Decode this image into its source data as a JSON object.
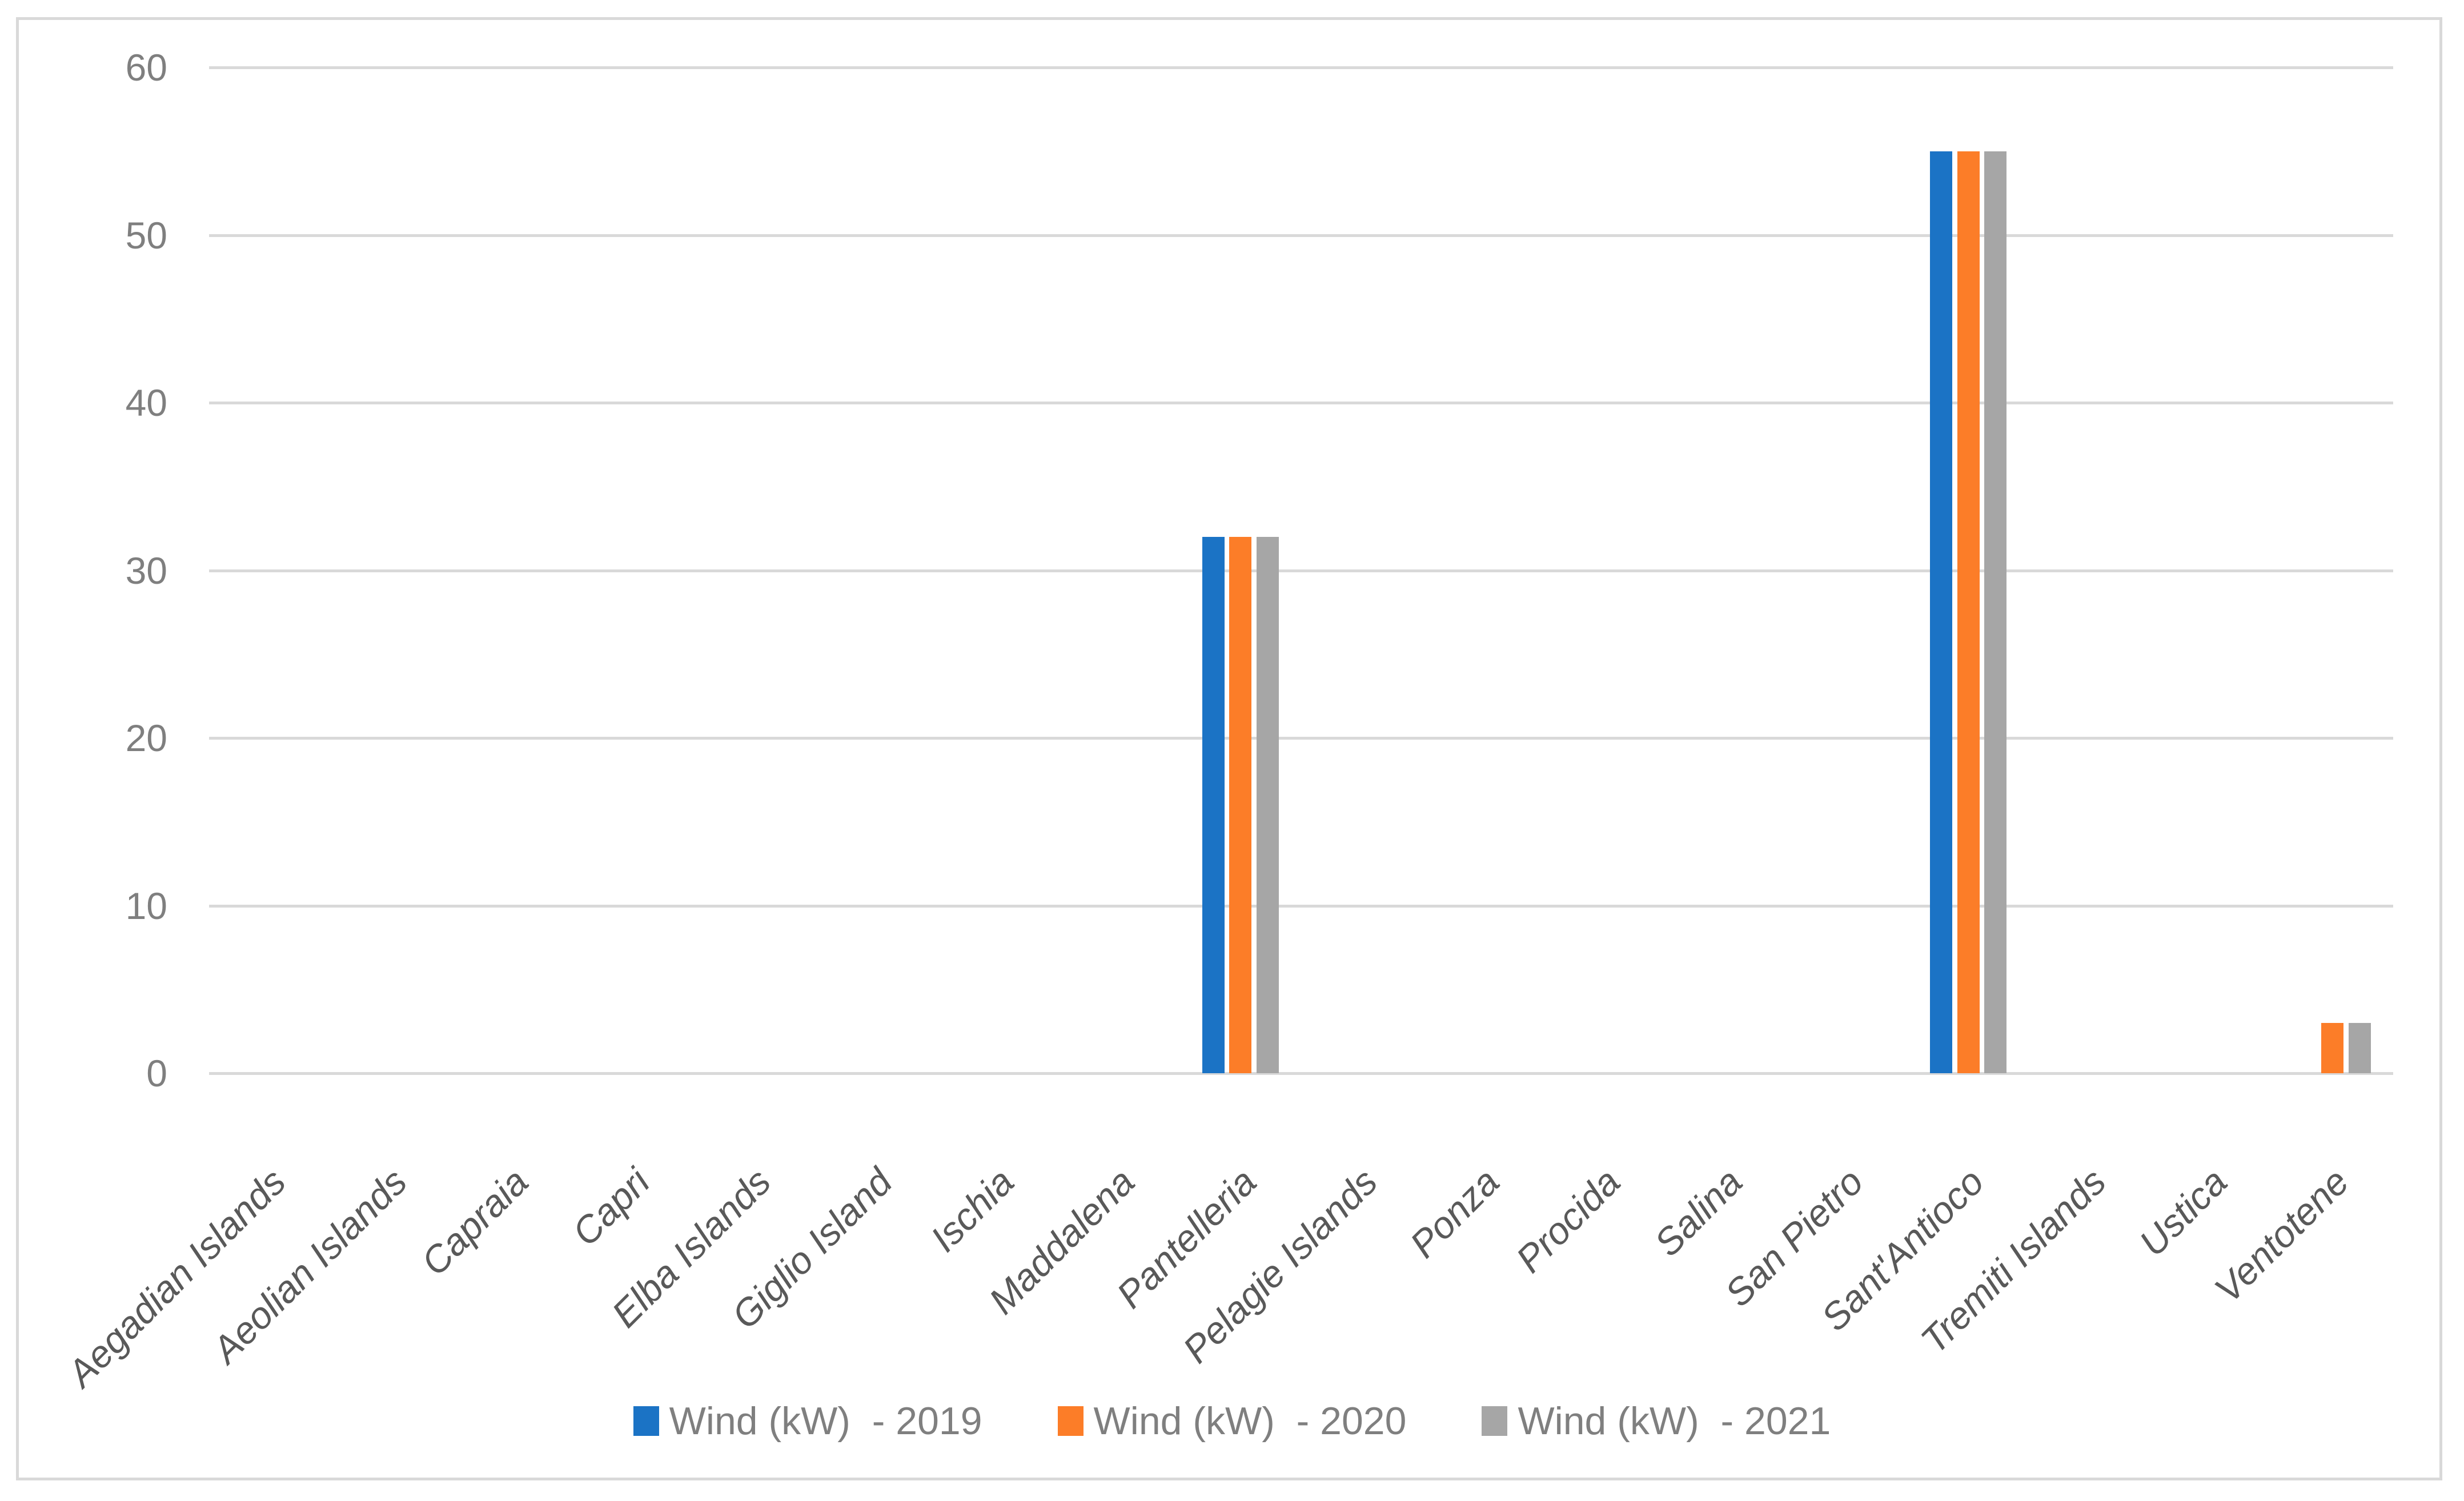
{
  "figure": {
    "title": "",
    "background_color": "#FFFFFF",
    "border_color": "#D9D9D9",
    "gridline_color": "#D9D9D9",
    "axis_tick_label_color": "#7F7F7F",
    "category_label_color": "#595959",
    "legend_text_color": "#7F7F7F"
  },
  "chart_data": {
    "type": "bar",
    "title": "",
    "xlabel": "",
    "ylabel": "",
    "categories": [
      "Aegadian Islands",
      "Aeolian Islands",
      "Capraia",
      "Capri",
      "Elba Islands",
      "Giglio Island",
      "Ischia",
      "Maddalena",
      "Pantelleria",
      "Pelagie Islands",
      "Ponza",
      "Procida",
      "Salina",
      "San Pietro",
      "Sant'Antioco",
      "Tremiti Islands",
      "Ustica",
      "Ventotene"
    ],
    "series": [
      {
        "name": "Wind (kW)  - 2019",
        "color": "#1B73C5",
        "values": [
          0,
          0,
          0,
          0,
          0,
          0,
          0,
          0,
          32,
          0,
          0,
          0,
          0,
          0,
          55,
          0,
          0,
          0
        ]
      },
      {
        "name": "Wind (kW)  - 2020",
        "color": "#FC7D28",
        "values": [
          0,
          0,
          0,
          0,
          0,
          0,
          0,
          0,
          32,
          0,
          0,
          0,
          0,
          0,
          55,
          0,
          0,
          3
        ]
      },
      {
        "name": "Wind (kW)  - 2021",
        "color": "#A6A6A6",
        "values": [
          0,
          0,
          0,
          0,
          0,
          0,
          0,
          0,
          32,
          0,
          0,
          0,
          0,
          0,
          55,
          0,
          0,
          3
        ]
      }
    ],
    "ylim": [
      0,
      60
    ],
    "yticks": [
      0,
      10,
      20,
      30,
      40,
      50,
      60
    ],
    "grid": "horizontal",
    "legend_position": "bottom",
    "category_labels_rotation_deg": -45,
    "category_labels_italic": true
  }
}
